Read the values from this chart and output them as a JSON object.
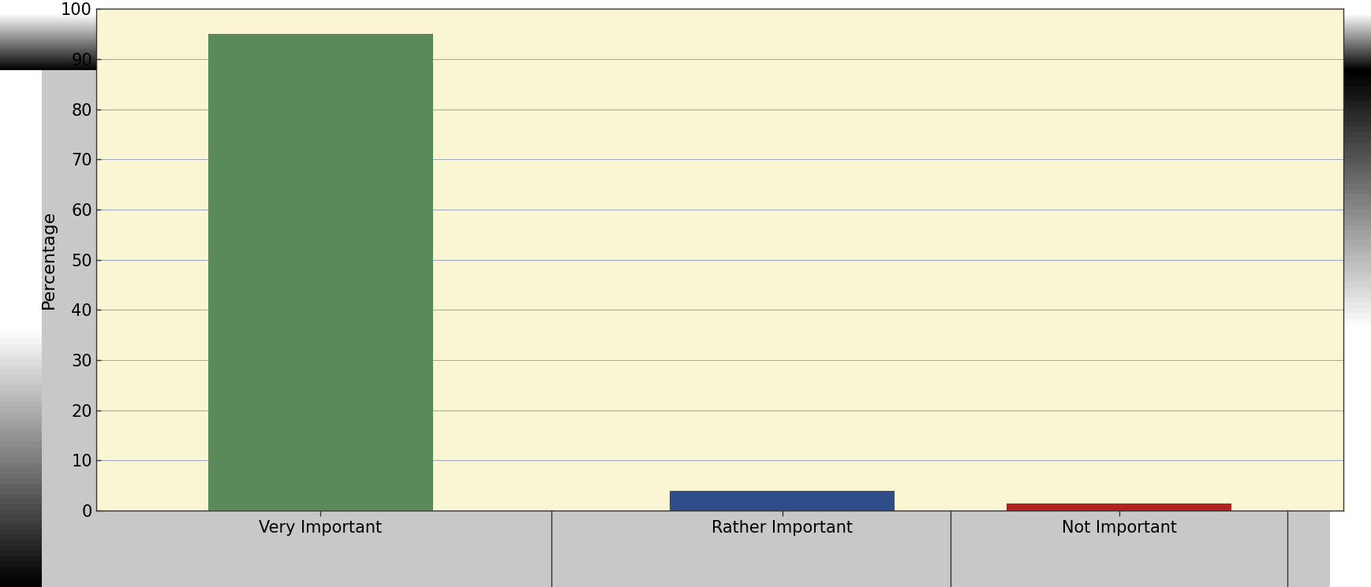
{
  "categories": [
    "Very Important",
    "Rather Important",
    "Not Important"
  ],
  "values": [
    95,
    4,
    1.5
  ],
  "bar_colors": [
    "#5a8a5a",
    "#2e4d8a",
    "#b22222"
  ],
  "ylabel": "Percentage",
  "ylim": [
    0,
    100
  ],
  "yticks": [
    0,
    10,
    20,
    30,
    40,
    50,
    60,
    70,
    80,
    90,
    100
  ],
  "background_color": "#faf6d4",
  "outer_background": "#c8c8c8",
  "grid_color": "#a0aabf",
  "tick_label_fontsize": 15,
  "axis_label_fontsize": 16,
  "bar_width": 0.18,
  "x_positions": [
    0.18,
    0.55,
    0.82
  ],
  "xlim": [
    0.0,
    1.0
  ]
}
